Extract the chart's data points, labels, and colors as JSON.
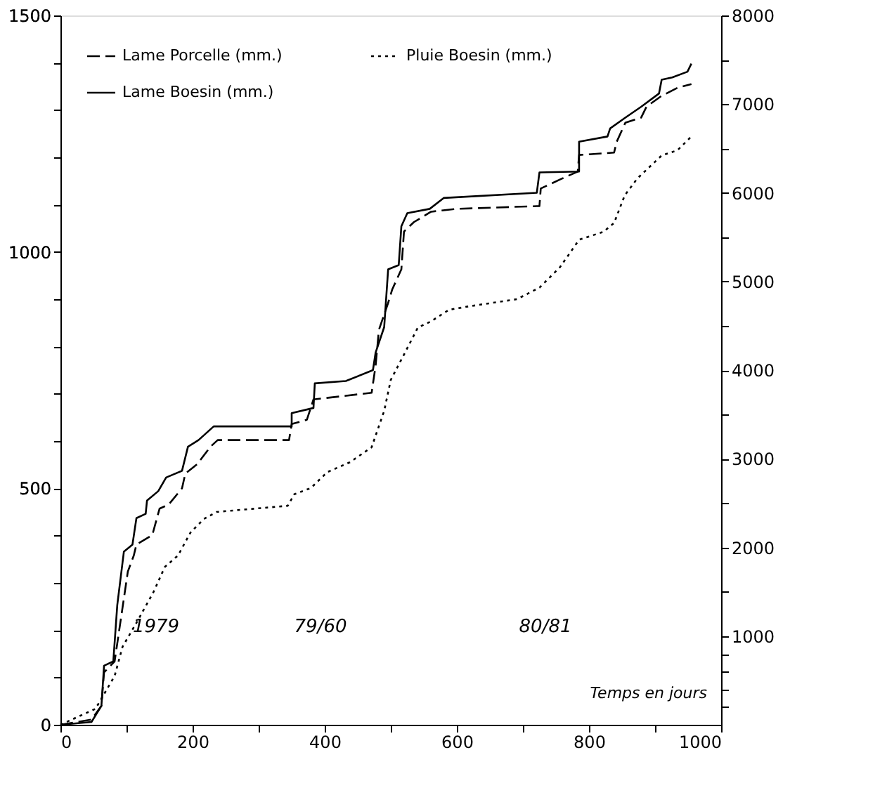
{
  "chart_data": {
    "type": "line",
    "xlabel": "Temps en jours",
    "xlim": [
      0,
      1000
    ],
    "xticks": [
      0,
      {
        "value": 100,
        "label": null
      },
      200,
      {
        "value": 300,
        "label": null
      },
      400,
      {
        "value": 500,
        "label": null
      },
      600,
      {
        "value": 700,
        "label": null
      },
      800,
      {
        "value": 900,
        "label": null
      },
      1000
    ],
    "ylim": [
      0,
      1500
    ],
    "yticks": [
      0,
      {
        "value": 100,
        "label": null
      },
      {
        "value": 200,
        "label": null
      },
      {
        "value": 300,
        "label": null
      },
      {
        "value": 400,
        "label": null
      },
      500,
      {
        "value": 600,
        "label": null
      },
      {
        "value": 700,
        "label": null
      },
      {
        "value": 800,
        "label": null
      },
      {
        "value": 900,
        "label": null
      },
      1000,
      {
        "value": 1100,
        "label": null
      },
      {
        "value": 1200,
        "label": null
      },
      {
        "value": 1300,
        "label": null
      },
      {
        "value": 1400,
        "label": null
      },
      1500
    ],
    "y2lim": [
      0,
      8000
    ],
    "y2ticks": [
      {
        "value": 200,
        "label": null
      },
      {
        "value": 400,
        "label": null
      },
      {
        "value": 600,
        "label": null
      },
      {
        "value": 800,
        "label": null
      },
      1000,
      {
        "value": 1500,
        "label": null
      },
      2000,
      {
        "value": 2500,
        "label": null
      },
      3000,
      {
        "value": 3500,
        "label": null
      },
      4000,
      {
        "value": 4500,
        "label": null
      },
      5000,
      {
        "value": 5500,
        "label": null
      },
      6000,
      {
        "value": 6500,
        "label": null
      },
      7000,
      {
        "value": 7500,
        "label": null
      },
      8000
    ],
    "legend": "top",
    "grid": false,
    "marker": "none",
    "annotations": [
      "1979",
      "79/60",
      "80/81"
    ],
    "series": [
      {
        "name": "Lame Porcelle (mm.)",
        "color": "#000000",
        "line_style": "dashed",
        "x": [
          0,
          47,
          62,
          66,
          82,
          90,
          102,
          111,
          115,
          139,
          150,
          164,
          184,
          189,
          207,
          227,
          238,
          346,
          350,
          373,
          383,
          471,
          477,
          482,
          496,
          502,
          516,
          520,
          535,
          561,
          600,
          725,
          727,
          756,
          783,
          785,
          838,
          842,
          855,
          879,
          887,
          910,
          934,
          955
        ],
        "values": [
          0,
          11,
          40,
          111,
          134,
          210,
          324,
          358,
          381,
          401,
          457,
          466,
          500,
          531,
          551,
          588,
          602,
          602,
          636,
          645,
          688,
          702,
          759,
          835,
          892,
          920,
          963,
          1043,
          1063,
          1085,
          1091,
          1097,
          1134,
          1153,
          1170,
          1205,
          1210,
          1233,
          1273,
          1284,
          1307,
          1330,
          1347,
          1355
        ]
      },
      {
        "name": "Lame Boesin (mm.)",
        "color": "#000000",
        "line_style": "solid",
        "x": [
          0,
          47,
          62,
          66,
          80,
          86,
          96,
          109,
          115,
          129,
          131,
          148,
          160,
          184,
          193,
          209,
          232,
          350,
          350,
          383,
          385,
          432,
          473,
          477,
          490,
          496,
          512,
          516,
          525,
          559,
          580,
          721,
          725,
          785,
          785,
          828,
          832,
          855,
          879,
          906,
          910,
          926,
          949,
          955
        ],
        "values": [
          0,
          6,
          40,
          125,
          134,
          253,
          366,
          381,
          437,
          446,
          474,
          494,
          523,
          537,
          588,
          602,
          631,
          631,
          659,
          670,
          722,
          727,
          750,
          787,
          841,
          963,
          972,
          1054,
          1082,
          1091,
          1114,
          1125,
          1168,
          1170,
          1233,
          1244,
          1261,
          1284,
          1307,
          1335,
          1364,
          1369,
          1381,
          1398
        ]
      },
      {
        "name": "Pluie Boesin (mm.)",
        "color": "#000000",
        "line_style": "dotted",
        "axis": "y2",
        "x": [
          0,
          53,
          82,
          94,
          115,
          141,
          158,
          178,
          197,
          217,
          236,
          344,
          354,
          379,
          404,
          438,
          471,
          490,
          500,
          521,
          541,
          561,
          588,
          619,
          691,
          725,
          756,
          785,
          822,
          838,
          854,
          873,
          910,
          934,
          957
        ],
        "values": [
          0,
          180,
          550,
          880,
          1150,
          1500,
          1780,
          1910,
          2170,
          2320,
          2400,
          2470,
          2600,
          2670,
          2850,
          2960,
          3130,
          3540,
          3890,
          4190,
          4480,
          4550,
          4680,
          4720,
          4800,
          4930,
          5160,
          5470,
          5560,
          5660,
          5970,
          6160,
          6420,
          6480,
          6650
        ]
      }
    ]
  }
}
